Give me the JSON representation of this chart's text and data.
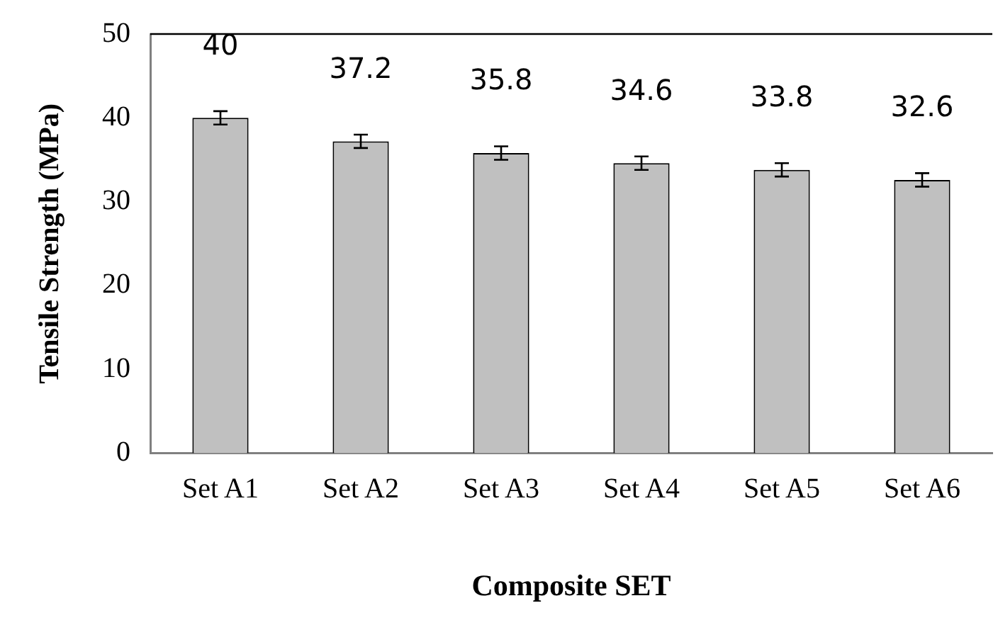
{
  "chart_data": {
    "type": "bar",
    "xlabel": "Composite SET",
    "ylabel": "Tensile Strength (MPa)",
    "categories": [
      "Set A1",
      "Set A2",
      "Set A3",
      "Set A4",
      "Set A5",
      "Set A6"
    ],
    "values": [
      40,
      37.2,
      35.8,
      34.6,
      33.8,
      32.6
    ],
    "errors": [
      0.8,
      0.8,
      0.8,
      0.8,
      0.8,
      0.8
    ],
    "color": "#c0c0c0",
    "ylim": [
      0,
      50
    ],
    "yticks": [
      0,
      10,
      20,
      30,
      40,
      50
    ],
    "grid": false,
    "legend": false,
    "data_labels": true
  }
}
